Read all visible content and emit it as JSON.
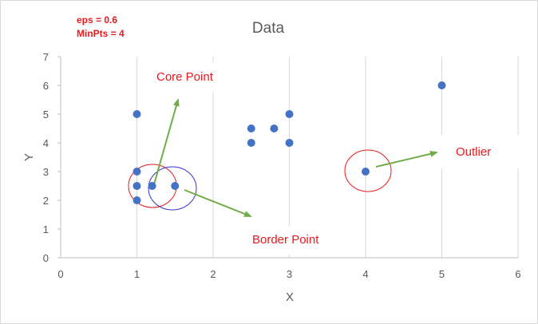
{
  "chart_data": {
    "type": "scatter",
    "title": "Data",
    "xlabel": "X",
    "ylabel": "Y",
    "xlim": [
      0,
      6
    ],
    "ylim": [
      0,
      7
    ],
    "x_ticks": [
      "0",
      "1",
      "2",
      "3",
      "4",
      "5",
      "6"
    ],
    "y_ticks": [
      "0",
      "1",
      "2",
      "3",
      "4",
      "5",
      "6",
      "7"
    ],
    "grid": "vertical major gridlines",
    "series": [
      {
        "color": "#4472c4",
        "points": [
          {
            "x": 1,
            "y": 5
          },
          {
            "x": 1,
            "y": 3
          },
          {
            "x": 1,
            "y": 2.5
          },
          {
            "x": 1,
            "y": 2
          },
          {
            "x": 1.2,
            "y": 2.5
          },
          {
            "x": 1.5,
            "y": 2.5
          },
          {
            "x": 2.5,
            "y": 4.5
          },
          {
            "x": 2.5,
            "y": 4
          },
          {
            "x": 2.8,
            "y": 4.5
          },
          {
            "x": 3,
            "y": 5
          },
          {
            "x": 3,
            "y": 4
          },
          {
            "x": 4,
            "y": 3
          },
          {
            "x": 5,
            "y": 6
          }
        ]
      }
    ],
    "parameters": {
      "eps": "eps = 0.6",
      "minpts": "MinPts = 4"
    },
    "annotations": {
      "core_point": "Core Point",
      "border_point": "Border Point",
      "outlier": "Outlier"
    },
    "colors": {
      "annotation_text": "#e8191c",
      "arrow": "#70ad47",
      "core_circle": "#e8191c",
      "border_circle": "#3333cc",
      "outlier_circle": "#e8191c"
    }
  }
}
